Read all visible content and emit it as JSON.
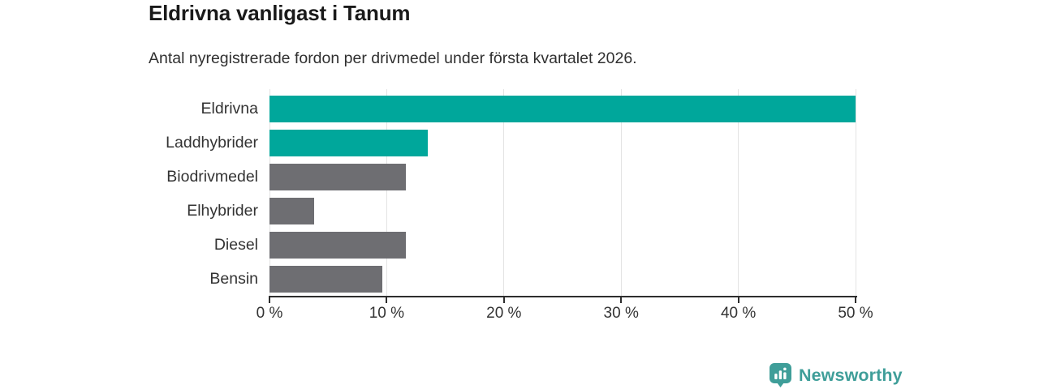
{
  "title": "Eldrivna vanligast i Tanum",
  "subtitle": "Antal nyregistrerade fordon per drivmedel under första kvartalet 2026.",
  "chart_data": {
    "type": "bar",
    "orientation": "horizontal",
    "categories": [
      "Eldrivna",
      "Laddhybrider",
      "Biodrivmedel",
      "Elhybrider",
      "Diesel",
      "Bensin"
    ],
    "values": [
      50.0,
      13.5,
      11.6,
      3.8,
      11.6,
      9.6
    ],
    "unit": "%",
    "xlabel": "",
    "ylabel": "",
    "xlim": [
      0,
      50
    ],
    "x_ticks": [
      0,
      10,
      20,
      30,
      40,
      50
    ],
    "x_tick_labels": [
      "0 %",
      "10 %",
      "20 %",
      "30 %",
      "40 %",
      "50 %"
    ],
    "grid": "vertical",
    "legend_position": "none",
    "colors": {
      "highlight": "#00a79b",
      "default": "#6e6e72"
    },
    "bar_colors": [
      "#00a79b",
      "#00a79b",
      "#6e6e72",
      "#6e6e72",
      "#6e6e72",
      "#6e6e72"
    ]
  },
  "branding": {
    "logo_text": "Newsworthy",
    "logo_color": "#3f9e99"
  }
}
